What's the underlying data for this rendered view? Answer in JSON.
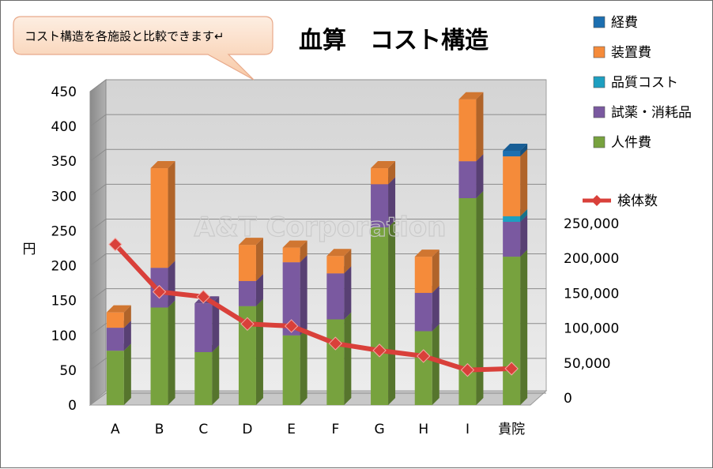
{
  "chart_data": {
    "type": "bar",
    "title": "血算　コスト構造",
    "callout": "コスト構造を各施設と比較できます↵",
    "watermark": "A&T Corporation",
    "ylabel": "円",
    "categories": [
      "A",
      "B",
      "C",
      "D",
      "E",
      "F",
      "G",
      "H",
      "I",
      "貴院"
    ],
    "ylim": [
      0,
      450
    ],
    "yticks": [
      "0",
      "50",
      "100",
      "150",
      "200",
      "250",
      "300",
      "350",
      "400",
      "450"
    ],
    "y2lim": [
      0,
      250000
    ],
    "y2ticks": [
      "0",
      "50,000",
      "100,000",
      "150,000",
      "200,000",
      "250,000"
    ],
    "series": [
      {
        "name": "人件費",
        "color": "#77a23e",
        "values": [
          78,
          140,
          76,
          142,
          100,
          123,
          255,
          106,
          297,
          213
        ]
      },
      {
        "name": "試薬・消耗品",
        "color": "#7a59a0",
        "values": [
          33,
          57,
          70,
          36,
          105,
          66,
          62,
          55,
          53,
          50
        ]
      },
      {
        "name": "品質コスト",
        "color": "#1e9fc0",
        "values": [
          0,
          0,
          0,
          0,
          0,
          0,
          0,
          0,
          0,
          8
        ]
      },
      {
        "name": "装置費",
        "color": "#f58b3a",
        "values": [
          22,
          143,
          0,
          52,
          21,
          25,
          23,
          52,
          89,
          86
        ]
      },
      {
        "name": "経費",
        "color": "#1c6fb0",
        "values": [
          0,
          0,
          0,
          0,
          0,
          0,
          0,
          0,
          0,
          8
        ]
      }
    ],
    "line_series": {
      "name": "検体数",
      "color": "#d9403a",
      "axis": "secondary",
      "values": [
        220000,
        152000,
        145000,
        106000,
        103000,
        78000,
        68000,
        60000,
        40000,
        42000
      ]
    },
    "legend_order": [
      "経費",
      "装置費",
      "品質コスト",
      "試薬・消耗品",
      "人件費"
    ],
    "grid": true,
    "legend_position": "right"
  }
}
